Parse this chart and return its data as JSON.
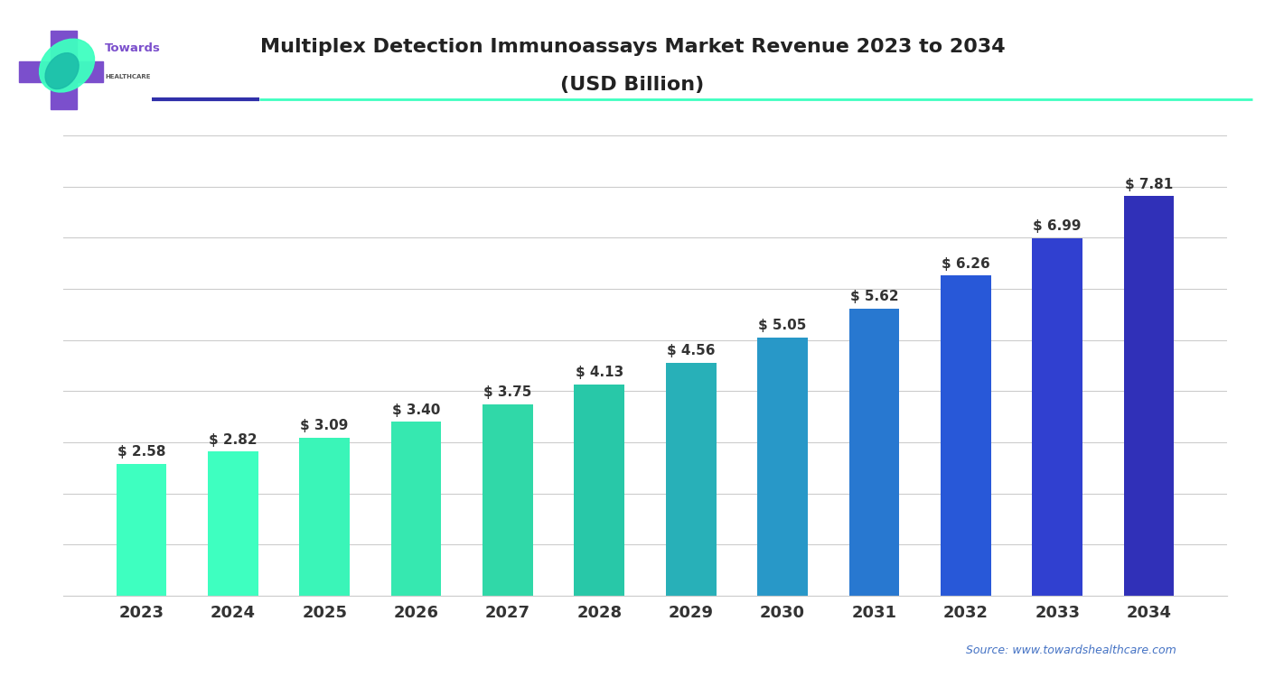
{
  "title_line1": "Multiplex Detection Immunoassays Market Revenue 2023 to 2034",
  "title_line2": "(USD Billion)",
  "years": [
    2023,
    2024,
    2025,
    2026,
    2027,
    2028,
    2029,
    2030,
    2031,
    2032,
    2033,
    2034
  ],
  "values": [
    2.58,
    2.82,
    3.09,
    3.4,
    3.75,
    4.13,
    4.56,
    5.05,
    5.62,
    6.26,
    6.99,
    7.81
  ],
  "bar_colors": [
    "#3EFFC0",
    "#3EFFC0",
    "#3AF5B8",
    "#36E8B0",
    "#30D8A8",
    "#28C8A8",
    "#28B0B8",
    "#2898C8",
    "#2878D0",
    "#2858D8",
    "#3040D0",
    "#3030B8"
  ],
  "background_color": "#ffffff",
  "ylim": [
    0,
    9.0
  ],
  "source_text": "Source: www.towardshealthcare.com",
  "source_color": "#4472c4",
  "title_color": "#222222",
  "label_color": "#333333",
  "grid_color": "#cccccc",
  "sep_color1": "#3030AA",
  "sep_color2": "#3EFFC0",
  "logo_cross_color": "#7B4FCC",
  "logo_towards_color": "#7B4FCC",
  "logo_healthcare_color": "#555555"
}
